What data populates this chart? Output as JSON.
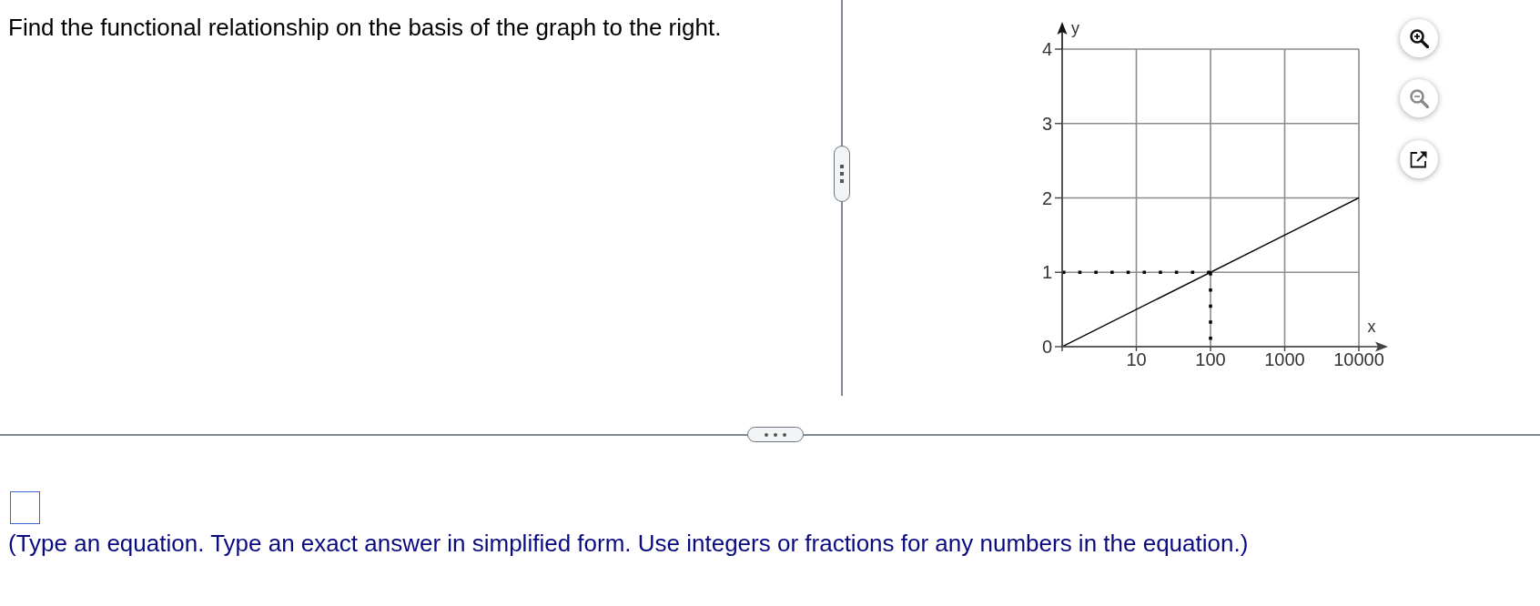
{
  "chart_data": {
    "type": "line",
    "title": "Find the functional relationship on the basis of the graph to the right.",
    "xlabel": "x",
    "ylabel": "y",
    "annotations": [
      "(Type an equation. Type an exact answer in simplified form. Use integers or fractions for any numbers in the equation.)"
    ],
    "log": "x",
    "xlim": [
      1,
      10000
    ],
    "ylim": [
      0,
      4
    ],
    "xticks": [
      {
        "value": 1,
        "label": null
      },
      10,
      100,
      1000,
      10000
    ],
    "yticks": [
      0,
      1,
      2,
      3,
      4
    ],
    "grid": true,
    "series": [
      {
        "color": "#000000",
        "x": [
          1,
          10000
        ],
        "values": [
          0,
          2
        ],
        "line_style": "solid"
      },
      {
        "color": "#000000",
        "x": [
          1,
          100
        ],
        "values": [
          1,
          1
        ],
        "line_style": "dotted"
      },
      {
        "color": "#000000",
        "x": [
          100,
          100
        ],
        "values": [
          1,
          0
        ],
        "line_style": "dotted"
      }
    ]
  }
}
